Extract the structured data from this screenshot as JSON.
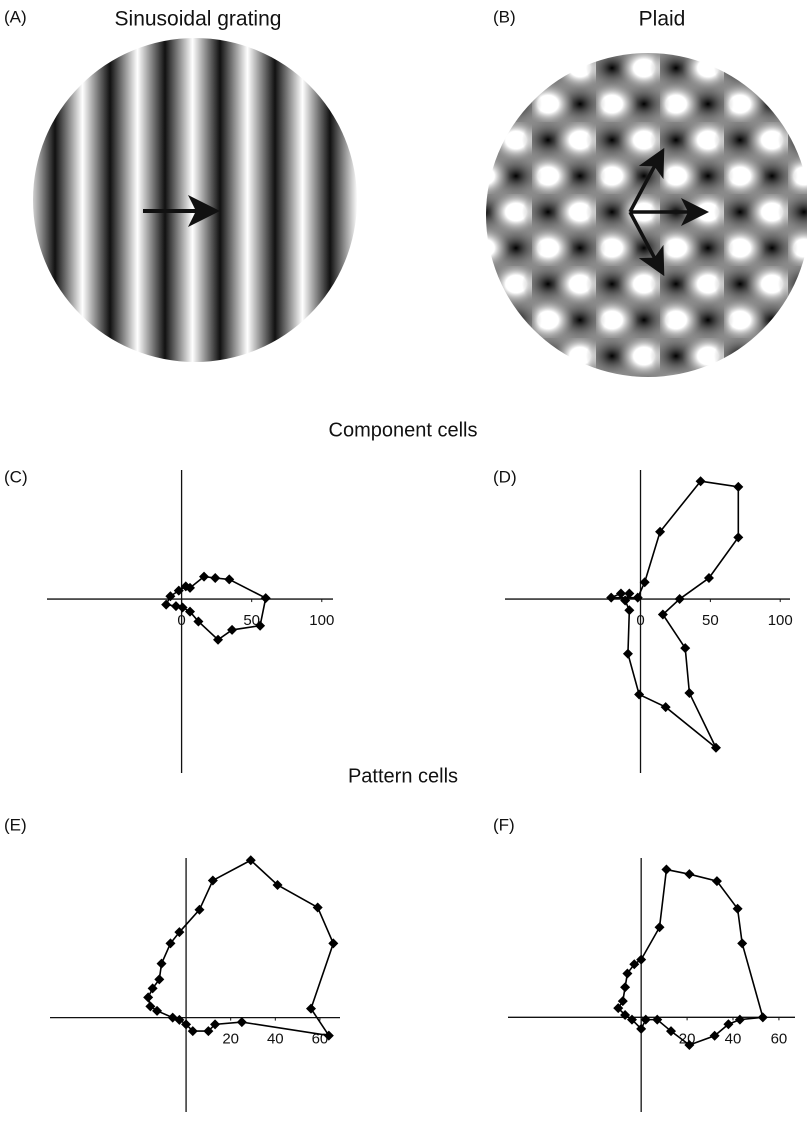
{
  "images": [
    {
      "label": "(A)",
      "title": "Sinusoidal grating"
    },
    {
      "label": "(B)",
      "title": "Plaid"
    }
  ],
  "sections": [
    "Component cells",
    "Pattern cells"
  ],
  "chart_data": [
    {
      "type": "line",
      "label": "(C)",
      "closed": true,
      "marker": "diamond",
      "color": "#000000",
      "x": [
        60,
        56,
        36,
        26,
        12,
        6,
        0.7,
        -4,
        -11,
        -8,
        -2,
        3,
        6,
        16,
        24,
        34
      ],
      "values": [
        0.7,
        -19,
        -22,
        -29,
        -16,
        -9,
        -6,
        -5,
        -4,
        2,
        6,
        9,
        8,
        16,
        15,
        14
      ],
      "xlim": [
        -96,
        108
      ],
      "ylim": [
        -124,
        92
      ],
      "xticks": [
        0,
        50,
        100
      ]
    },
    {
      "type": "line",
      "label": "(D)",
      "closed": true,
      "marker": "diamond",
      "color": "#000000",
      "x": [
        43,
        70,
        70,
        49,
        28,
        16,
        32,
        35,
        54,
        18,
        -1,
        -9,
        -8,
        -11,
        -8,
        -14,
        -21,
        -2,
        3,
        14
      ],
      "values": [
        84,
        80,
        44,
        15,
        0,
        -11,
        -35,
        -67,
        -106,
        -77,
        -68,
        -39,
        -8,
        -1,
        4,
        4,
        1,
        1,
        12,
        48
      ],
      "xlim": [
        -97,
        107
      ],
      "ylim": [
        -124,
        92
      ],
      "xticks": [
        0,
        50,
        100
      ]
    },
    {
      "type": "line",
      "label": "(E)",
      "closed": true,
      "marker": "diamond",
      "color": "#000000",
      "x": [
        29,
        41,
        59,
        66,
        56,
        64,
        25,
        13,
        10,
        3,
        0,
        -3,
        -6,
        -13,
        -16,
        -17,
        -15,
        -12,
        -11,
        -7,
        -3,
        6,
        12
      ],
      "values": [
        70,
        59,
        49,
        33,
        4,
        -8,
        -2,
        -3,
        -6,
        -6,
        -3,
        -1,
        0,
        3,
        5,
        9,
        13,
        17,
        24,
        33,
        38,
        48,
        61
      ],
      "xlim": [
        -61,
        69
      ],
      "ylim": [
        -42,
        71
      ],
      "xticks": [
        20,
        40,
        60
      ]
    },
    {
      "type": "line",
      "label": "(F)",
      "closed": true,
      "marker": "diamond",
      "color": "#000000",
      "x": [
        11,
        21,
        33,
        42,
        44,
        53,
        43,
        38,
        32,
        21,
        13,
        7,
        2,
        0,
        -4,
        -7,
        -10,
        -8,
        -7,
        -6,
        -3,
        0,
        8
      ],
      "values": [
        64,
        62,
        59,
        47,
        32,
        0,
        -1,
        -3,
        -8,
        -12,
        -6,
        -1,
        -1,
        -5,
        -1,
        1,
        4,
        7,
        13,
        19,
        23,
        25,
        39
      ],
      "xlim": [
        -58,
        67
      ],
      "ylim": [
        -41,
        69
      ],
      "xticks": [
        20,
        40,
        60
      ]
    }
  ]
}
